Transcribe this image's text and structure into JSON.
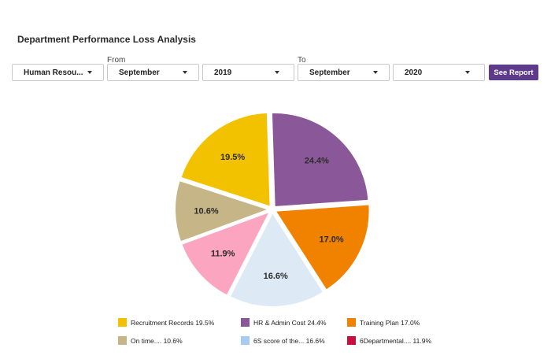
{
  "header": {
    "title": "Department Performance Loss Analysis"
  },
  "filters": {
    "department": "Human Resou...",
    "from_label": "From",
    "from_month": "September",
    "from_year": "2019",
    "to_label": "To",
    "to_month": "September",
    "to_year": "2020",
    "submit_label": "See Report"
  },
  "chart_data": {
    "type": "pie",
    "slices": [
      {
        "label": "Recruitment Records",
        "legend": "Recruitment Records 19.5%",
        "value": 19.5,
        "value_label": "19.5%",
        "color": "#f2c200"
      },
      {
        "label": "HR & Admin Cost",
        "legend": "HR & Admin Cost 24.4%",
        "value": 24.4,
        "value_label": "24.4%",
        "color": "#8a5898"
      },
      {
        "label": "Training Plan",
        "legend": "Training Plan 17.0%",
        "value": 17.0,
        "value_label": "17.0%",
        "color": "#f08200"
      },
      {
        "label": "6S score of the...",
        "legend": "6S score of the... 16.6%",
        "value": 16.6,
        "value_label": "16.6%",
        "color": "#dde9f5",
        "legend_color": "#a6ccf0"
      },
      {
        "label": "6Departmental....",
        "legend": "6Departmental.... 11.9%",
        "value": 11.9,
        "value_label": "11.9%",
        "color": "#fca5c0",
        "legend_color": "#c8103e"
      },
      {
        "label": "On time....",
        "legend": "On time.... 10.6%",
        "value": 10.6,
        "value_label": "10.6%",
        "color": "#c6b586"
      }
    ],
    "legend_order": [
      0,
      1,
      2,
      5,
      3,
      4
    ],
    "legend_position": "bottom"
  }
}
